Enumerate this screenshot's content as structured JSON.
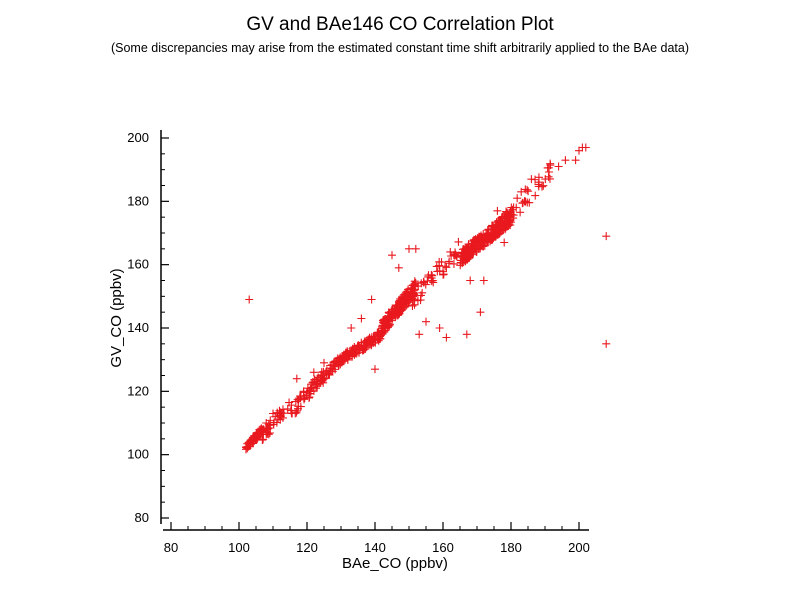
{
  "chart_data": {
    "type": "scatter",
    "title": "GV and BAe146 CO Correlation Plot",
    "subtitle": "(Some discrepancies may arise from the estimated constant time shift arbitrarily applied to the BAe data)",
    "xlabel": "BAe_CO (ppbv)",
    "ylabel": "GV_CO (ppbv)",
    "xlim": [
      80,
      200
    ],
    "ylim": [
      80,
      200
    ],
    "x_ticks": [
      80,
      100,
      120,
      140,
      160,
      180,
      200
    ],
    "y_ticks": [
      80,
      100,
      120,
      140,
      160,
      180,
      200
    ],
    "marker": "+",
    "marker_color": "#e8191e",
    "grid": false,
    "clusters": [
      {
        "x_range": [
          102,
          107
        ],
        "y_range": [
          102,
          108
        ],
        "n": 60
      },
      {
        "x_range": [
          106,
          115
        ],
        "y_range": [
          105,
          116
        ],
        "n": 40
      },
      {
        "x_range": [
          115,
          125
        ],
        "y_range": [
          113,
          125
        ],
        "n": 50
      },
      {
        "x_range": [
          124,
          132
        ],
        "y_range": [
          124,
          132
        ],
        "n": 60
      },
      {
        "x_range": [
          130,
          142
        ],
        "y_range": [
          130,
          138
        ],
        "n": 110
      },
      {
        "x_range": [
          142,
          152
        ],
        "y_range": [
          140,
          153
        ],
        "n": 180
      },
      {
        "x_range": [
          150,
          165
        ],
        "y_range": [
          148,
          165
        ],
        "n": 50
      },
      {
        "x_range": [
          165,
          180
        ],
        "y_range": [
          162,
          175
        ],
        "n": 260
      },
      {
        "x_range": [
          178,
          192
        ],
        "y_range": [
          174,
          190
        ],
        "n": 40
      }
    ],
    "points": [
      {
        "x": 103,
        "y": 149
      },
      {
        "x": 208,
        "y": 169
      },
      {
        "x": 208,
        "y": 135
      },
      {
        "x": 201,
        "y": 197
      },
      {
        "x": 202,
        "y": 197
      },
      {
        "x": 200,
        "y": 196
      },
      {
        "x": 196,
        "y": 193
      },
      {
        "x": 194,
        "y": 191
      },
      {
        "x": 199,
        "y": 193
      },
      {
        "x": 139,
        "y": 149
      },
      {
        "x": 150,
        "y": 165
      },
      {
        "x": 152,
        "y": 165
      },
      {
        "x": 145,
        "y": 163
      },
      {
        "x": 147,
        "y": 159
      },
      {
        "x": 168,
        "y": 155
      },
      {
        "x": 172,
        "y": 155
      },
      {
        "x": 157,
        "y": 155
      },
      {
        "x": 155,
        "y": 142
      },
      {
        "x": 159,
        "y": 140
      },
      {
        "x": 153,
        "y": 138
      },
      {
        "x": 161,
        "y": 137
      },
      {
        "x": 167,
        "y": 138
      },
      {
        "x": 171,
        "y": 145
      },
      {
        "x": 140,
        "y": 127
      },
      {
        "x": 136,
        "y": 143
      },
      {
        "x": 133,
        "y": 140
      },
      {
        "x": 112,
        "y": 112
      },
      {
        "x": 117,
        "y": 124
      },
      {
        "x": 119,
        "y": 120
      },
      {
        "x": 122,
        "y": 126
      },
      {
        "x": 108,
        "y": 110
      },
      {
        "x": 110,
        "y": 113
      },
      {
        "x": 125,
        "y": 129
      },
      {
        "x": 183,
        "y": 183
      },
      {
        "x": 186,
        "y": 187
      },
      {
        "x": 184,
        "y": 180
      },
      {
        "x": 178,
        "y": 167
      },
      {
        "x": 176,
        "y": 177
      }
    ]
  }
}
